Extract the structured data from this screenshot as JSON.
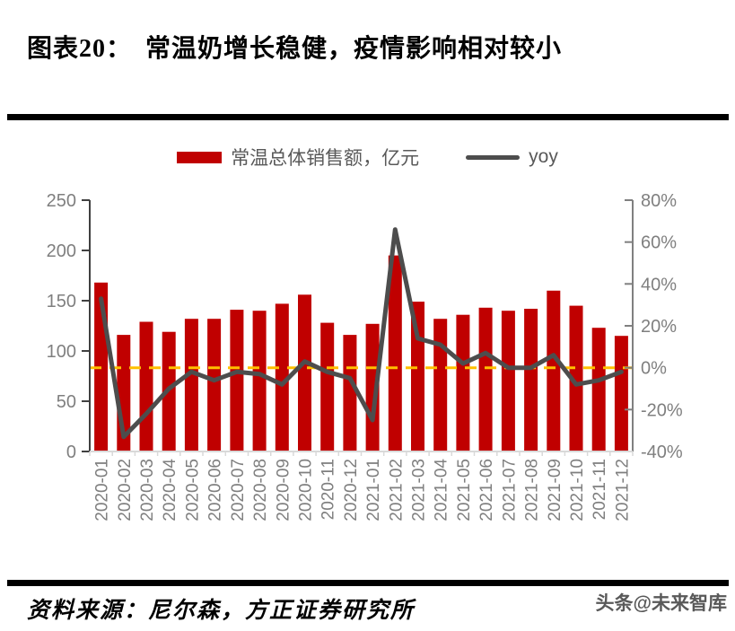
{
  "title": "图表20：　常温奶增长稳健，疫情影响相对较小",
  "legend": {
    "bar_label": "常温总体销售额，亿元",
    "line_label": "yoy"
  },
  "footer": {
    "source": "资料来源：尼尔森，方正证券研究所",
    "watermark": "头条@未来智库"
  },
  "chart_data": {
    "type": "bar+line",
    "categories": [
      "2020-01",
      "2020-02",
      "2020-03",
      "2020-04",
      "2020-05",
      "2020-06",
      "2020-07",
      "2020-08",
      "2020-09",
      "2020-10",
      "2020-11",
      "2020-12",
      "2021-01",
      "2021-02",
      "2021-03",
      "2021-04",
      "2021-05",
      "2021-06",
      "2021-07",
      "2021-08",
      "2021-09",
      "2021-10",
      "2021-11",
      "2021-12"
    ],
    "series": [
      {
        "name": "常温总体销售额，亿元",
        "type": "bar",
        "axis": "left",
        "color": "#C00000",
        "values": [
          168,
          116,
          129,
          119,
          132,
          132,
          141,
          140,
          147,
          156,
          128,
          116,
          127,
          195,
          149,
          132,
          136,
          143,
          140,
          142,
          160,
          145,
          123,
          115
        ]
      },
      {
        "name": "yoy",
        "type": "line",
        "axis": "right",
        "color": "#4D4D4D",
        "unit": "%",
        "values": [
          33,
          -33,
          -22,
          -10,
          -2,
          -6,
          -2,
          -3,
          -8,
          3,
          -2,
          -5,
          -25,
          66,
          14,
          11,
          2,
          7,
          0,
          0,
          6,
          -8,
          -6,
          -2
        ]
      }
    ],
    "left_axis": {
      "min": 0,
      "max": 250,
      "tick_step": 50,
      "ticks": [
        0,
        50,
        100,
        150,
        200,
        250
      ]
    },
    "right_axis": {
      "min": -40,
      "max": 80,
      "tick_step": 20,
      "tick_labels": [
        "-40%",
        "-20%",
        "0%",
        "20%",
        "40%",
        "60%",
        "80%"
      ]
    },
    "reference_line": {
      "axis": "right",
      "value": 0,
      "style": "dashed",
      "color": "#FFC000"
    },
    "legend_position": "top",
    "grid": false,
    "colors": {
      "bar": "#C00000",
      "line": "#4D4D4D",
      "zero_dash": "#FFC000",
      "axis_left": "#404040",
      "axis_right": "#808080",
      "axis_bottom": "#D9D9D9",
      "tick_text": "#7F7F7F"
    }
  }
}
